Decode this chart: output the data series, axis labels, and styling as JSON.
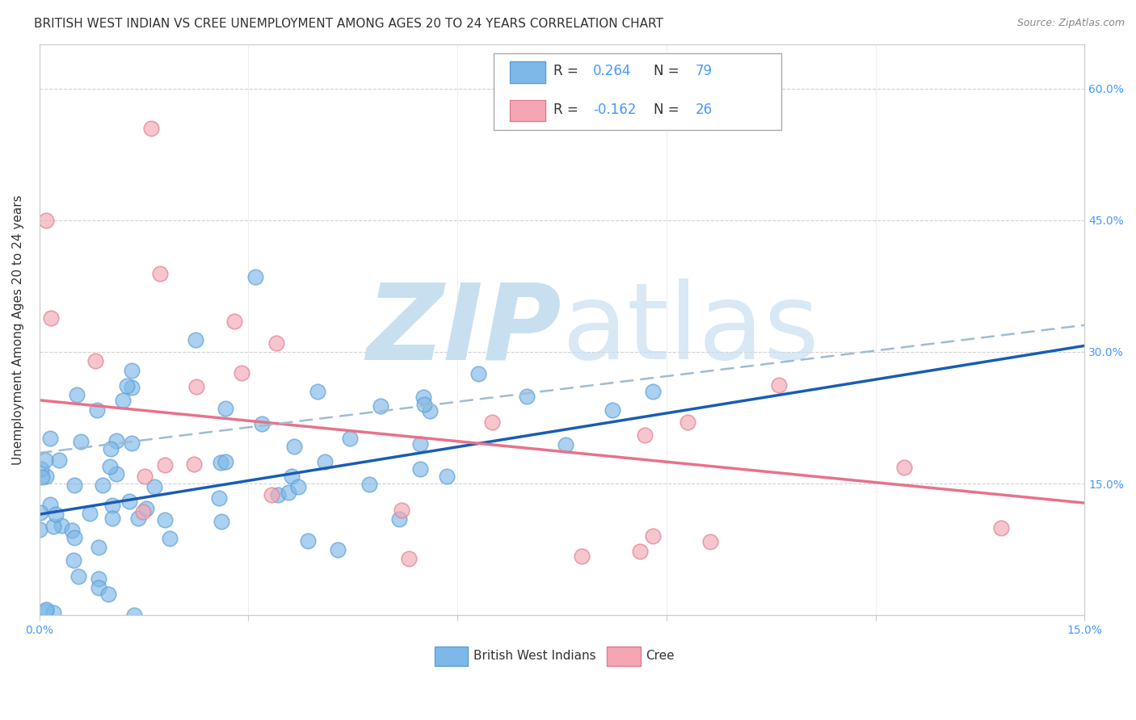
{
  "title": "BRITISH WEST INDIAN VS CREE UNEMPLOYMENT AMONG AGES 20 TO 24 YEARS CORRELATION CHART",
  "source": "Source: ZipAtlas.com",
  "ylabel": "Unemployment Among Ages 20 to 24 years",
  "xlim": [
    0.0,
    0.15
  ],
  "ylim": [
    0.0,
    0.65
  ],
  "xtick_vals": [
    0.0,
    0.03,
    0.06,
    0.09,
    0.12,
    0.15
  ],
  "xtick_labels": [
    "0.0%",
    "",
    "",
    "",
    "",
    "15.0%"
  ],
  "ytick_vals": [
    0.0,
    0.15,
    0.3,
    0.45,
    0.6
  ],
  "ytick_labels_right": [
    "",
    "15.0%",
    "30.0%",
    "45.0%",
    "60.0%"
  ],
  "legend_label1": "British West Indians",
  "legend_label2": "Cree",
  "watermark_zip": "ZIP",
  "watermark_atlas": "atlas",
  "watermark_color": "#c8dff0",
  "blue_scatter_color": "#7eb8e8",
  "blue_scatter_edge": "#5a9fd4",
  "pink_scatter_color": "#f4a7b3",
  "pink_scatter_edge": "#e07a8f",
  "blue_line_color": "#1a5cb5",
  "pink_line_color": "#e8728a",
  "dashed_line_color": "#a0bcd0",
  "background_color": "#ffffff",
  "grid_color": "#cccccc",
  "title_fontsize": 11,
  "axis_label_fontsize": 11,
  "tick_fontsize": 10,
  "tick_color": "#4499ff",
  "bwi_intercept": 0.115,
  "bwi_slope": 1.28,
  "cree_intercept": 0.245,
  "cree_slope": -0.78,
  "dash_intercept": 0.185,
  "dash_slope": 0.97
}
